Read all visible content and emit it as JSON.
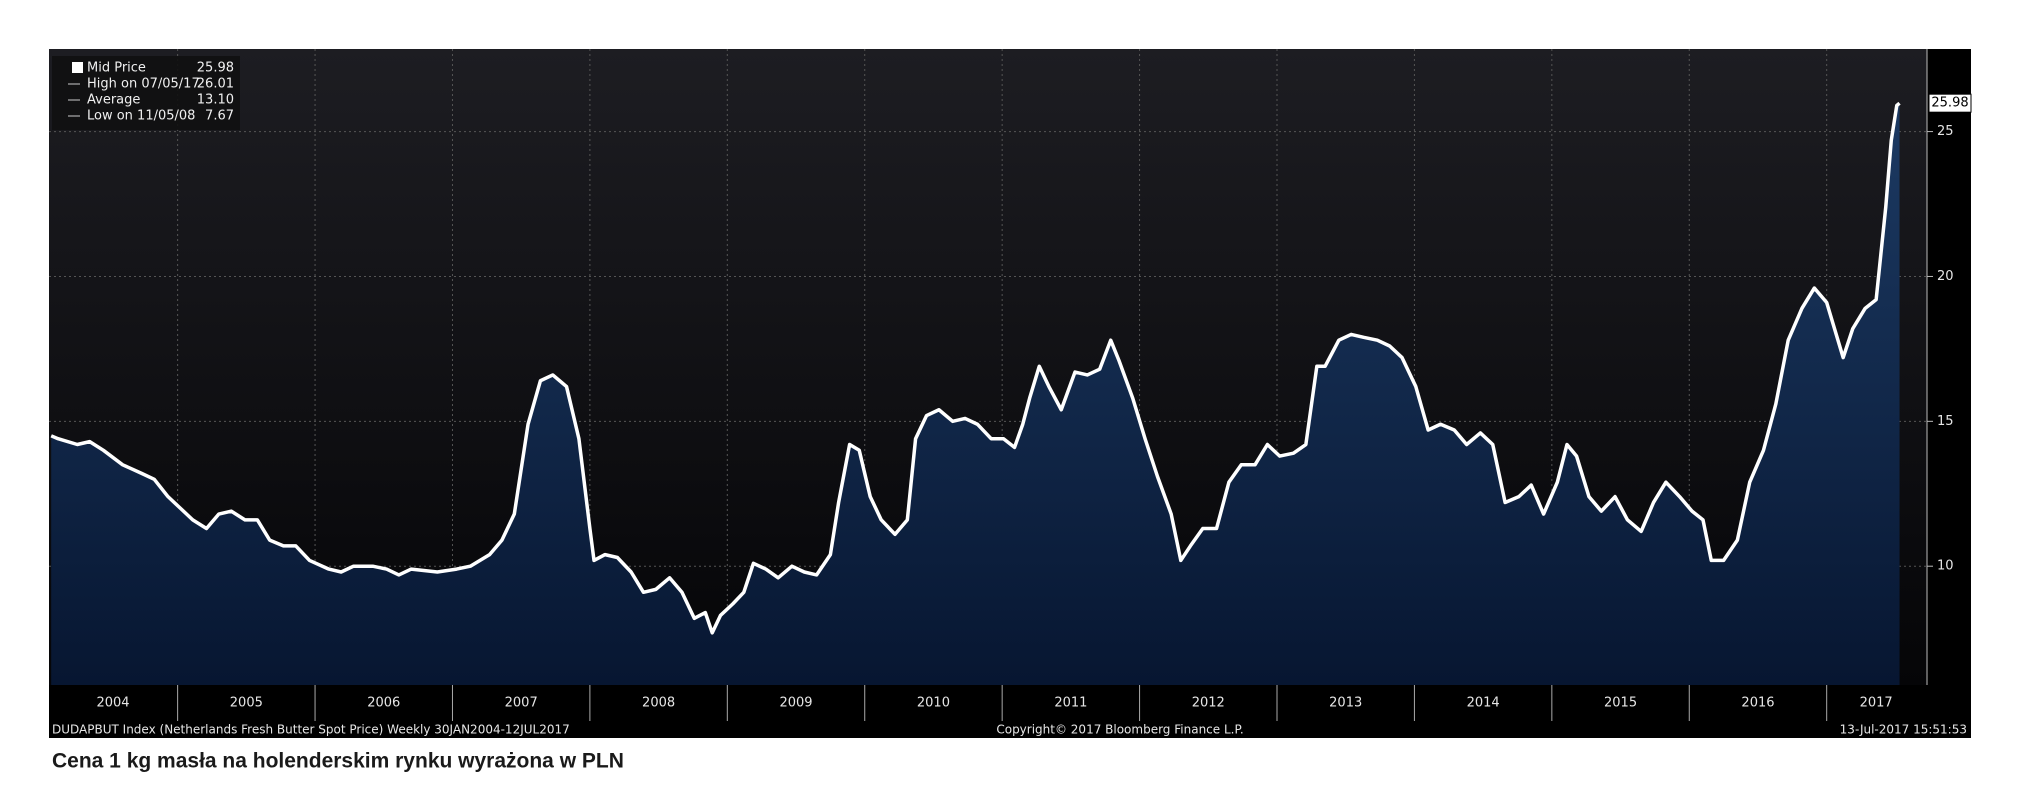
{
  "chart_data": {
    "type": "area",
    "caption": "Cena 1 kg masła na holenderskim rynku wyrażona w PLN",
    "footer_left": "DUDAPBUT Index (Netherlands Fresh Butter Spot Price)  Weekly 30JAN2004-12JUL2017",
    "footer_center": "Copyright© 2017 Bloomberg Finance L.P.",
    "footer_right": "13-Jul-2017 15:51:53",
    "last_label": "25.98",
    "legend": [
      {
        "label": "Mid Price",
        "value": "25.98"
      },
      {
        "label": "High on 07/05/17",
        "value": "26.01"
      },
      {
        "label": "Average",
        "value": "13.10"
      },
      {
        "label": "Low on 11/05/08",
        "value": "7.67"
      }
    ],
    "xlim": [
      2004.064,
      2017.73
    ],
    "ylim": [
      5.9,
      27.85
    ],
    "yticks": [
      10,
      15,
      20,
      25
    ],
    "xticks": [
      {
        "value": 2004.53,
        "label": "2004"
      },
      {
        "value": 2005.5,
        "label": "2005"
      },
      {
        "value": 2006.5,
        "label": "2006"
      },
      {
        "value": 2007.5,
        "label": "2007"
      },
      {
        "value": 2008.5,
        "label": "2008"
      },
      {
        "value": 2009.5,
        "label": "2009"
      },
      {
        "value": 2010.5,
        "label": "2010"
      },
      {
        "value": 2011.5,
        "label": "2011"
      },
      {
        "value": 2012.5,
        "label": "2012"
      },
      {
        "value": 2013.5,
        "label": "2013"
      },
      {
        "value": 2014.5,
        "label": "2014"
      },
      {
        "value": 2015.5,
        "label": "2015"
      },
      {
        "value": 2016.5,
        "label": "2016"
      },
      {
        "value": 2017.36,
        "label": "2017"
      }
    ],
    "xgrid": [
      2005,
      2006,
      2007,
      2008,
      2009,
      2010,
      2011,
      2012,
      2013,
      2014,
      2015,
      2016,
      2017
    ],
    "grid": true,
    "x": [
      2004.08,
      2004.13,
      2004.27,
      2004.36,
      2004.46,
      2004.6,
      2004.74,
      2004.83,
      2004.93,
      2005.02,
      2005.11,
      2005.21,
      2005.3,
      2005.39,
      2005.49,
      2005.58,
      2005.67,
      2005.77,
      2005.86,
      2005.96,
      2006.1,
      2006.19,
      2006.28,
      2006.42,
      2006.52,
      2006.61,
      2006.7,
      2006.89,
      2007.03,
      2007.13,
      2007.27,
      2007.36,
      2007.45,
      2007.55,
      2007.64,
      2007.73,
      2007.83,
      2007.92,
      2008.0,
      2008.03,
      2008.11,
      2008.2,
      2008.3,
      2008.39,
      2008.48,
      2008.58,
      2008.67,
      2008.76,
      2008.84,
      2008.89,
      2008.95,
      2009.04,
      2009.12,
      2009.19,
      2009.28,
      2009.37,
      2009.47,
      2009.56,
      2009.65,
      2009.75,
      2009.81,
      2009.89,
      2009.96,
      2010.04,
      2010.12,
      2010.22,
      2010.31,
      2010.37,
      2010.45,
      2010.54,
      2010.64,
      2010.73,
      2010.82,
      2010.92,
      2011.01,
      2011.09,
      2011.15,
      2011.2,
      2011.27,
      2011.34,
      2011.43,
      2011.53,
      2011.62,
      2011.71,
      2011.79,
      2011.85,
      2011.95,
      2012.04,
      2012.13,
      2012.23,
      2012.3,
      2012.37,
      2012.46,
      2012.56,
      2012.65,
      2012.74,
      2012.84,
      2012.93,
      2013.02,
      2013.12,
      2013.21,
      2013.29,
      2013.35,
      2013.45,
      2013.54,
      2013.63,
      2013.73,
      2013.82,
      2013.91,
      2014.01,
      2014.1,
      2014.19,
      2014.29,
      2014.38,
      2014.48,
      2014.57,
      2014.66,
      2014.76,
      2014.85,
      2014.94,
      2015.04,
      2015.11,
      2015.18,
      2015.27,
      2015.36,
      2015.46,
      2015.55,
      2015.65,
      2015.74,
      2015.83,
      2015.93,
      2016.02,
      2016.1,
      2016.16,
      2016.25,
      2016.35,
      2016.44,
      2016.54,
      2016.63,
      2016.72,
      2016.82,
      2016.91,
      2017.0,
      2017.12,
      2017.19,
      2017.28,
      2017.36,
      2017.43,
      2017.47,
      2017.51,
      2017.53
    ],
    "series": [
      {
        "name": "Mid Price",
        "color": "#ffffff",
        "fill": "#14294a",
        "values": [
          14.5,
          14.4,
          14.2,
          14.3,
          14.0,
          13.5,
          13.2,
          13.0,
          12.4,
          12.0,
          11.6,
          11.3,
          11.8,
          11.9,
          11.6,
          11.6,
          10.9,
          10.7,
          10.7,
          10.2,
          9.9,
          9.8,
          10.0,
          10.0,
          9.9,
          9.7,
          9.9,
          9.8,
          9.9,
          10.0,
          10.4,
          10.9,
          11.8,
          14.9,
          16.4,
          16.6,
          16.2,
          14.4,
          11.3,
          10.2,
          10.4,
          10.3,
          9.8,
          9.1,
          9.2,
          9.6,
          9.1,
          8.2,
          8.4,
          7.7,
          8.3,
          8.7,
          9.1,
          10.1,
          9.9,
          9.6,
          10.0,
          9.8,
          9.7,
          10.4,
          12.2,
          14.2,
          14.0,
          12.4,
          11.6,
          11.1,
          11.6,
          14.4,
          15.2,
          15.4,
          15.0,
          15.1,
          14.9,
          14.4,
          14.4,
          14.1,
          14.9,
          15.8,
          16.9,
          16.2,
          15.4,
          16.7,
          16.6,
          16.8,
          17.8,
          17.1,
          15.8,
          14.4,
          13.1,
          11.8,
          10.2,
          10.7,
          11.3,
          11.3,
          12.9,
          13.5,
          13.5,
          14.2,
          13.8,
          13.9,
          14.2,
          16.9,
          16.9,
          17.8,
          18.0,
          17.9,
          17.8,
          17.6,
          17.2,
          16.2,
          14.7,
          14.9,
          14.7,
          14.2,
          14.6,
          14.2,
          12.2,
          12.4,
          12.8,
          11.8,
          12.9,
          14.2,
          13.8,
          12.4,
          11.9,
          12.4,
          11.6,
          11.2,
          12.2,
          12.9,
          12.4,
          11.9,
          11.6,
          10.2,
          10.2,
          10.9,
          12.9,
          14.0,
          15.6,
          17.8,
          18.9,
          19.6,
          19.1,
          17.2,
          18.2,
          18.9,
          19.2,
          22.4,
          24.7,
          25.9,
          25.98
        ]
      }
    ]
  }
}
